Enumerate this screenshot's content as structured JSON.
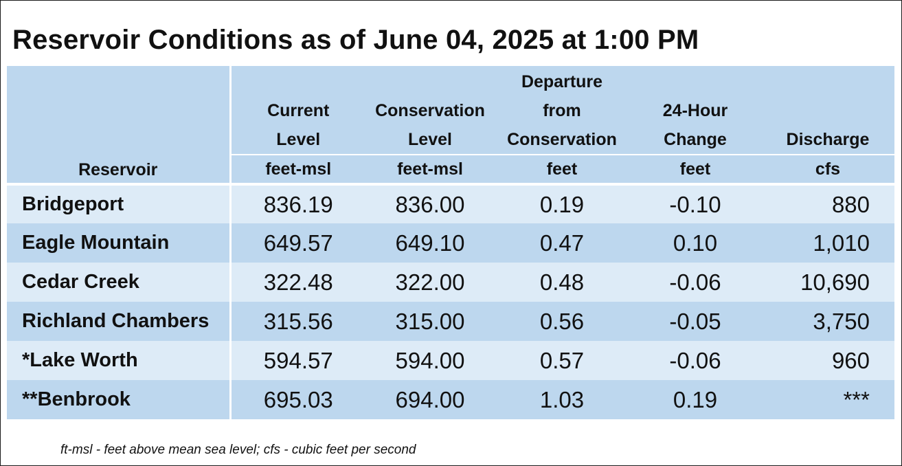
{
  "title": "Reservoir Conditions as of June 04, 2025 at 1:00 PM",
  "headers": {
    "reservoir": "Reservoir",
    "current_level": [
      "Current",
      "Level"
    ],
    "conservation_level": [
      "Conservation",
      "Level"
    ],
    "departure": [
      "Departure",
      "from",
      "Conservation"
    ],
    "change": [
      "24-Hour",
      "Change"
    ],
    "discharge": [
      "Discharge"
    ]
  },
  "units": {
    "current_level": "feet-msl",
    "conservation_level": "feet-msl",
    "departure": "feet",
    "change": "feet",
    "discharge": "cfs"
  },
  "rows": [
    {
      "name": "Bridgeport",
      "current": "836.19",
      "conservation": "836.00",
      "departure": "0.19",
      "change": "-0.10",
      "discharge": "880"
    },
    {
      "name": "Eagle Mountain",
      "current": "649.57",
      "conservation": "649.10",
      "departure": "0.47",
      "change": "0.10",
      "discharge": "1,010"
    },
    {
      "name": "Cedar Creek",
      "current": "322.48",
      "conservation": "322.00",
      "departure": "0.48",
      "change": "-0.06",
      "discharge": "10,690"
    },
    {
      "name": "Richland Chambers",
      "current": "315.56",
      "conservation": "315.00",
      "departure": "0.56",
      "change": "-0.05",
      "discharge": "3,750"
    },
    {
      "name": "*Lake Worth",
      "current": "594.57",
      "conservation": "594.00",
      "departure": "0.57",
      "change": "-0.06",
      "discharge": "960"
    },
    {
      "name": "**Benbrook",
      "current": "695.03",
      "conservation": "694.00",
      "departure": "1.03",
      "change": "0.19",
      "discharge": "***"
    }
  ],
  "footnote": "ft-msl - feet above mean sea level; cfs - cubic feet per second",
  "colors": {
    "header_bg": "#bdd7ee",
    "row_light": "#ddebf7",
    "row_dark": "#bdd7ee"
  }
}
